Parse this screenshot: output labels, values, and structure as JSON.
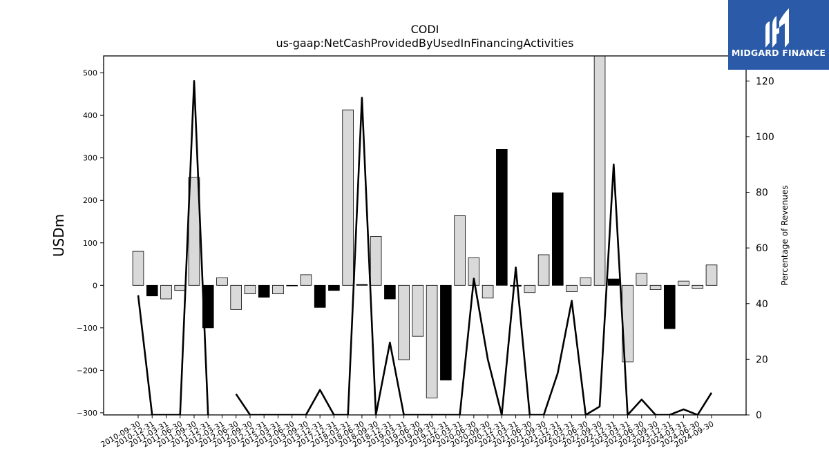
{
  "chart_data": {
    "type": "bar",
    "title": "CODI",
    "subtitle": "us-gaap:NetCashProvidedByUsedInFinancingActivities",
    "ylabel": "USDm",
    "y2label": "Percentage of Revenues",
    "ylim": [
      -305,
      540
    ],
    "y2lim": [
      0,
      129
    ],
    "yticks": [
      -300,
      -200,
      -100,
      0,
      100,
      200,
      300,
      400,
      500
    ],
    "y2ticks": [
      0,
      20,
      40,
      60,
      80,
      100,
      120
    ],
    "categories": [
      "2010-09-30",
      "2010-12-31",
      "2011-03-31",
      "2011-06-30",
      "2011-09-30",
      "2011-12-31",
      "2012-03-31",
      "2012-06-30",
      "2012-09-30",
      "2012-12-31",
      "2013-03-31",
      "2013-06-30",
      "2013-09-30",
      "2013-12-31",
      "2017-12-31",
      "2018-03-31",
      "2018-06-30",
      "2018-09-30",
      "2018-12-31",
      "2019-03-31",
      "2019-06-30",
      "2019-09-30",
      "2019-12-31",
      "2020-03-31",
      "2020-06-30",
      "2020-09-30",
      "2020-12-31",
      "2021-03-31",
      "2021-06-30",
      "2021-09-30",
      "2021-12-31",
      "2022-03-31",
      "2022-06-30",
      "2022-09-30",
      "2022-12-31",
      "2023-03-31",
      "2023-06-30",
      "2023-09-30",
      "2023-12-31",
      "2024-03-31",
      "2024-06-30",
      "2024-09-30"
    ],
    "series": [
      {
        "type": "bar",
        "values": [
          80,
          -25,
          -32,
          -12,
          254,
          -100,
          18,
          -57,
          -20,
          -28,
          -20,
          0,
          25,
          -52,
          -12,
          413,
          2,
          115,
          -32,
          -175,
          -120,
          -265,
          -223,
          164,
          65,
          -30,
          320,
          -2,
          -17,
          72,
          218,
          -15,
          18,
          540,
          15,
          -180,
          28,
          -10,
          -102,
          10,
          -7,
          48
        ],
        "colors": [
          "#d9d9d9",
          "#000000",
          "#d9d9d9",
          "#d9d9d9",
          "#d9d9d9",
          "#000000",
          "#d9d9d9",
          "#d9d9d9",
          "#d9d9d9",
          "#000000",
          "#d9d9d9",
          "#000000",
          "#d9d9d9",
          "#000000",
          "#000000",
          "#d9d9d9",
          "#000000",
          "#d9d9d9",
          "#000000",
          "#d9d9d9",
          "#d9d9d9",
          "#d9d9d9",
          "#000000",
          "#d9d9d9",
          "#d9d9d9",
          "#d9d9d9",
          "#000000",
          "#000000",
          "#d9d9d9",
          "#d9d9d9",
          "#000000",
          "#d9d9d9",
          "#d9d9d9",
          "#d9d9d9",
          "#000000",
          "#d9d9d9",
          "#d9d9d9",
          "#d9d9d9",
          "#000000",
          "#d9d9d9",
          "#d9d9d9",
          "#d9d9d9"
        ]
      },
      {
        "type": "line",
        "axis": "secondary",
        "values": [
          43,
          0,
          0,
          0,
          120,
          0,
          null,
          7.5,
          0,
          0,
          0,
          0,
          0,
          9,
          0,
          0,
          114,
          0,
          26,
          0,
          0,
          0,
          0,
          0,
          49,
          20,
          0,
          53,
          0,
          0,
          15,
          41,
          0,
          3,
          90,
          0,
          5.5,
          0,
          0,
          2,
          0,
          8
        ]
      }
    ],
    "grid": false,
    "legend": "none"
  },
  "logo": {
    "text": "MIDGARD FINANCE",
    "background": "#2a5aa8"
  }
}
